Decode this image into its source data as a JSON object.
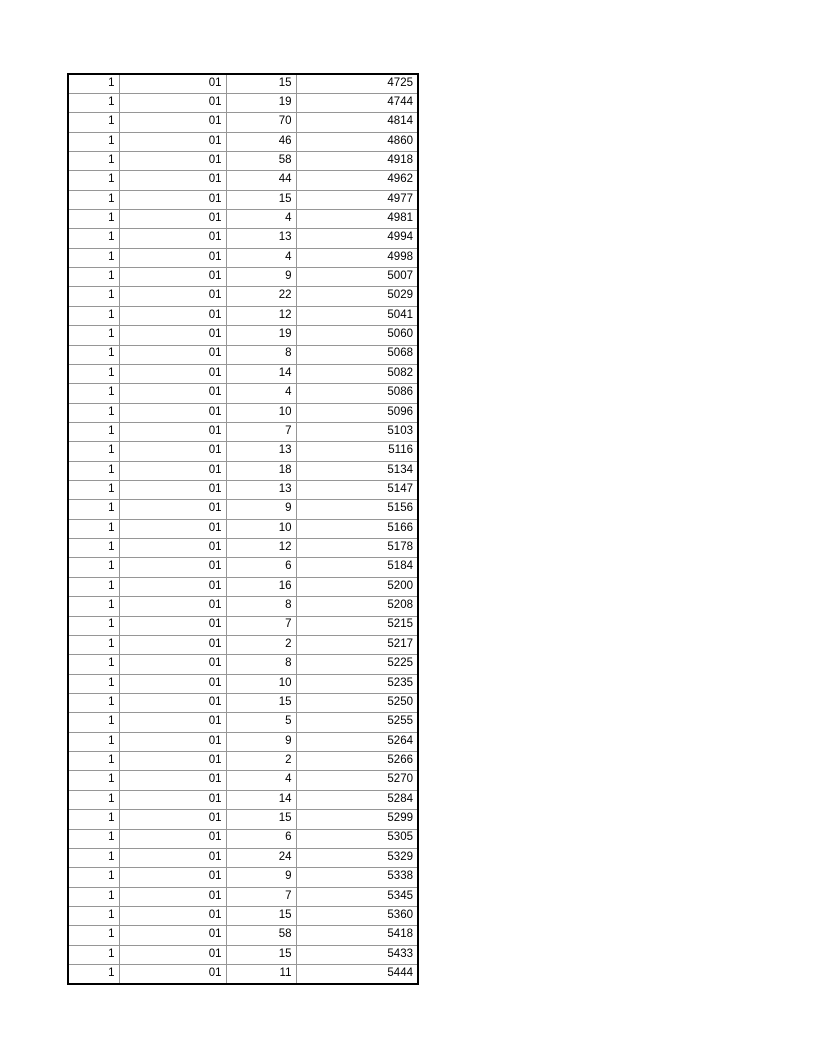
{
  "page": {
    "background": "#ffffff"
  },
  "colors": {
    "outer_border": "#000000",
    "grid_line": "#969696",
    "text": "#000000"
  },
  "table": {
    "row_count": 47,
    "column_count": 4,
    "rows": [
      [
        "1",
        "01",
        "15",
        "4725"
      ],
      [
        "1",
        "01",
        "19",
        "4744"
      ],
      [
        "1",
        "01",
        "70",
        "4814"
      ],
      [
        "1",
        "01",
        "46",
        "4860"
      ],
      [
        "1",
        "01",
        "58",
        "4918"
      ],
      [
        "1",
        "01",
        "44",
        "4962"
      ],
      [
        "1",
        "01",
        "15",
        "4977"
      ],
      [
        "1",
        "01",
        "4",
        "4981"
      ],
      [
        "1",
        "01",
        "13",
        "4994"
      ],
      [
        "1",
        "01",
        "4",
        "4998"
      ],
      [
        "1",
        "01",
        "9",
        "5007"
      ],
      [
        "1",
        "01",
        "22",
        "5029"
      ],
      [
        "1",
        "01",
        "12",
        "5041"
      ],
      [
        "1",
        "01",
        "19",
        "5060"
      ],
      [
        "1",
        "01",
        "8",
        "5068"
      ],
      [
        "1",
        "01",
        "14",
        "5082"
      ],
      [
        "1",
        "01",
        "4",
        "5086"
      ],
      [
        "1",
        "01",
        "10",
        "5096"
      ],
      [
        "1",
        "01",
        "7",
        "5103"
      ],
      [
        "1",
        "01",
        "13",
        "5116"
      ],
      [
        "1",
        "01",
        "18",
        "5134"
      ],
      [
        "1",
        "01",
        "13",
        "5147"
      ],
      [
        "1",
        "01",
        "9",
        "5156"
      ],
      [
        "1",
        "01",
        "10",
        "5166"
      ],
      [
        "1",
        "01",
        "12",
        "5178"
      ],
      [
        "1",
        "01",
        "6",
        "5184"
      ],
      [
        "1",
        "01",
        "16",
        "5200"
      ],
      [
        "1",
        "01",
        "8",
        "5208"
      ],
      [
        "1",
        "01",
        "7",
        "5215"
      ],
      [
        "1",
        "01",
        "2",
        "5217"
      ],
      [
        "1",
        "01",
        "8",
        "5225"
      ],
      [
        "1",
        "01",
        "10",
        "5235"
      ],
      [
        "1",
        "01",
        "15",
        "5250"
      ],
      [
        "1",
        "01",
        "5",
        "5255"
      ],
      [
        "1",
        "01",
        "9",
        "5264"
      ],
      [
        "1",
        "01",
        "2",
        "5266"
      ],
      [
        "1",
        "01",
        "4",
        "5270"
      ],
      [
        "1",
        "01",
        "14",
        "5284"
      ],
      [
        "1",
        "01",
        "15",
        "5299"
      ],
      [
        "1",
        "01",
        "6",
        "5305"
      ],
      [
        "1",
        "01",
        "24",
        "5329"
      ],
      [
        "1",
        "01",
        "9",
        "5338"
      ],
      [
        "1",
        "01",
        "7",
        "5345"
      ],
      [
        "1",
        "01",
        "15",
        "5360"
      ],
      [
        "1",
        "01",
        "58",
        "5418"
      ],
      [
        "1",
        "01",
        "15",
        "5433"
      ],
      [
        "1",
        "01",
        "11",
        "5444"
      ]
    ]
  }
}
